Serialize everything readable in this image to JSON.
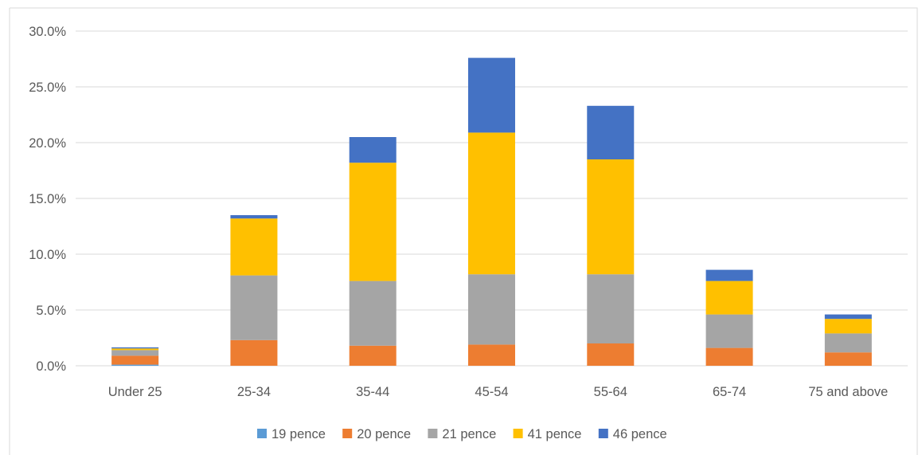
{
  "chart_data": {
    "type": "bar",
    "stacked": true,
    "categories": [
      "Under 25",
      "25-34",
      "35-44",
      "45-54",
      "55-64",
      "65-74",
      "75 and above"
    ],
    "series": [
      {
        "name": "19 pence",
        "color": "#5B9BD5",
        "values": [
          0.1,
          0.0,
          0.0,
          0.0,
          0.0,
          0.0,
          0.0
        ]
      },
      {
        "name": "20 pence",
        "color": "#ED7D31",
        "values": [
          0.8,
          2.3,
          1.8,
          1.9,
          2.0,
          1.6,
          1.2
        ]
      },
      {
        "name": "21 pence",
        "color": "#A5A5A5",
        "values": [
          0.5,
          5.8,
          5.8,
          6.3,
          6.2,
          3.0,
          1.7
        ]
      },
      {
        "name": "41 pence",
        "color": "#FFC000",
        "values": [
          0.15,
          5.1,
          10.6,
          12.7,
          10.3,
          3.0,
          1.3
        ]
      },
      {
        "name": "46 pence",
        "color": "#4472C4",
        "values": [
          0.1,
          0.3,
          2.3,
          6.7,
          4.8,
          1.0,
          0.4
        ]
      }
    ],
    "ylim": [
      0,
      30
    ],
    "yticks": [
      0,
      5,
      10,
      15,
      20,
      25,
      30
    ],
    "ytick_labels": [
      "0.0%",
      "5.0%",
      "10.0%",
      "15.0%",
      "20.0%",
      "25.0%",
      "30.0%"
    ],
    "grid": true,
    "legend_position": "bottom",
    "title": "",
    "xlabel": "",
    "ylabel": ""
  }
}
